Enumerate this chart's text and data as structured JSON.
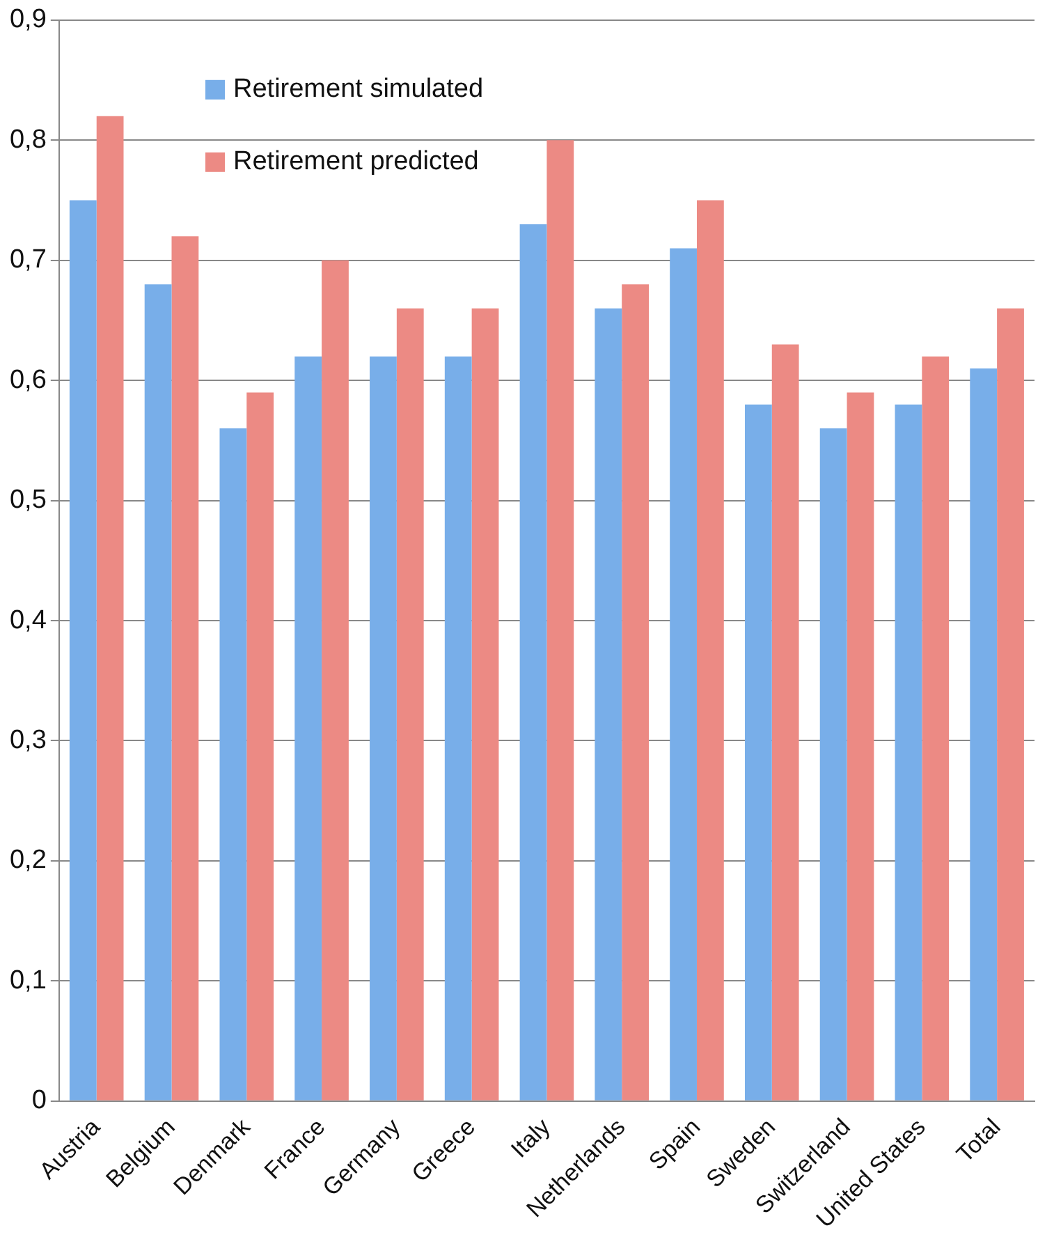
{
  "chart_data": {
    "type": "bar",
    "categories": [
      "Austria",
      "Belgium",
      "Denmark",
      "France",
      "Germany",
      "Greece",
      "Italy",
      "Netherlands",
      "Spain",
      "Sweden",
      "Switzerland",
      "United States",
      "Total"
    ],
    "series": [
      {
        "name": "Retirement simulated",
        "color": "#78aee9",
        "values": [
          0.75,
          0.68,
          0.56,
          0.62,
          0.62,
          0.62,
          0.73,
          0.66,
          0.71,
          0.58,
          0.56,
          0.58,
          0.61
        ]
      },
      {
        "name": "Retirement predicted",
        "color": "#ec8a84",
        "values": [
          0.82,
          0.72,
          0.59,
          0.7,
          0.66,
          0.66,
          0.8,
          0.68,
          0.75,
          0.63,
          0.59,
          0.62,
          0.66
        ]
      }
    ],
    "ylim": [
      0,
      0.9
    ],
    "yticks": [
      {
        "value": 0,
        "label": "0"
      },
      {
        "value": 0.1,
        "label": "0,1"
      },
      {
        "value": 0.2,
        "label": "0,2"
      },
      {
        "value": 0.3,
        "label": "0,3"
      },
      {
        "value": 0.4,
        "label": "0,4"
      },
      {
        "value": 0.5,
        "label": "0,5"
      },
      {
        "value": 0.6,
        "label": "0,6"
      },
      {
        "value": 0.7,
        "label": "0,7"
      },
      {
        "value": 0.8,
        "label": "0,8"
      },
      {
        "value": 0.9,
        "label": "0,9"
      }
    ],
    "grid": "y",
    "legend": "top left"
  }
}
